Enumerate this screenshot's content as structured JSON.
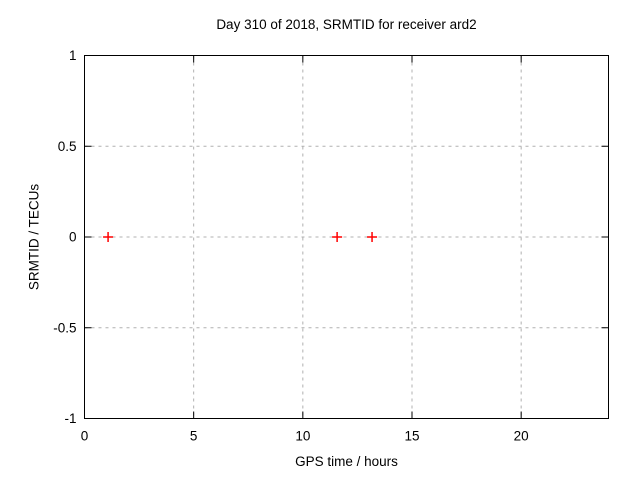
{
  "page": {
    "background": "#ffffff"
  },
  "chart_data": {
    "type": "scatter",
    "title": "Day 310 of 2018, SRMTID for receiver ard2",
    "xlabel": "GPS time / hours",
    "ylabel": "SRMTID / TECUs",
    "xlim": [
      0,
      24
    ],
    "ylim": [
      -1,
      1
    ],
    "xticks": {
      "values": [
        0,
        5,
        10,
        15,
        20
      ],
      "labels": [
        "0",
        "5",
        "10",
        "15",
        "20"
      ]
    },
    "yticks": {
      "values": [
        1,
        0.5,
        0,
        -0.5,
        -1
      ],
      "labels": [
        "1",
        "0.5",
        "0",
        "-0.5",
        "-1"
      ]
    },
    "grid": true,
    "legend": "none",
    "series": [
      {
        "name": "SRMTID",
        "marker": "plus",
        "color": "#ff0000",
        "points": [
          {
            "x": 1.08,
            "y": 0
          },
          {
            "x": 11.57,
            "y": 0
          },
          {
            "x": 13.17,
            "y": 0
          }
        ]
      }
    ],
    "colors": {
      "border": "#000000",
      "grid": "#b0b0b0",
      "text": "#000000",
      "marker": "#ff0000"
    }
  }
}
